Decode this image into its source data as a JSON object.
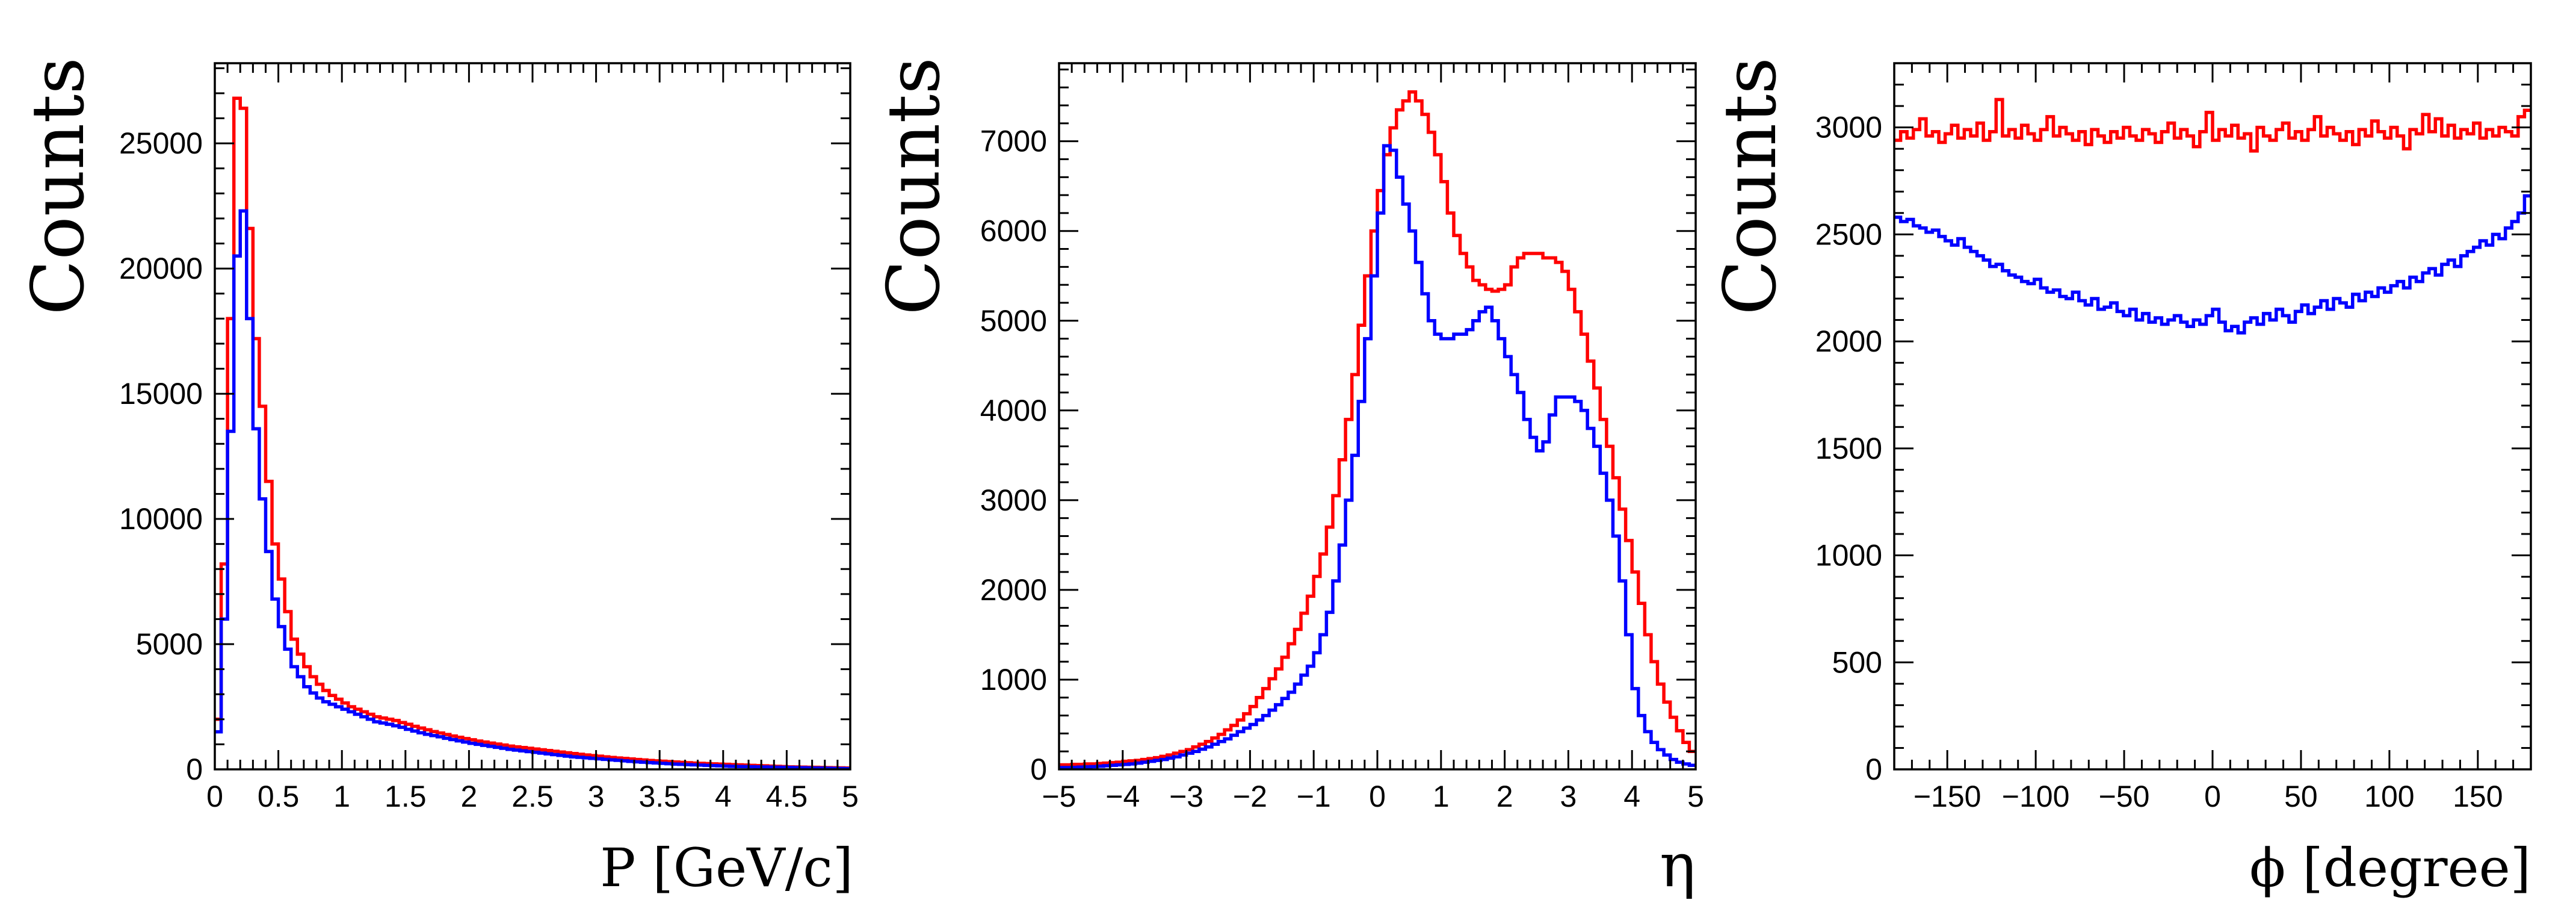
{
  "chart_data": [
    {
      "type": "step",
      "xlabel": "P [GeV/c]",
      "ylabel": "Counts",
      "xlim": [
        0,
        5
      ],
      "ylim": [
        0,
        28200
      ],
      "xticks": [
        0,
        0.5,
        1,
        1.5,
        2,
        2.5,
        3,
        3.5,
        4,
        4.5,
        5
      ],
      "xtick_labels": [
        "0",
        "0.5",
        "1",
        "1.5",
        "2",
        "2.5",
        "3",
        "3.5",
        "4",
        "4.5",
        "5"
      ],
      "xminor": 0.1,
      "yticks": [
        0,
        5000,
        10000,
        15000,
        20000,
        25000
      ],
      "ytick_labels": [
        "0",
        "5000",
        "10000",
        "15000",
        "20000",
        "25000"
      ],
      "yminor": 1000,
      "bin_edges_start": 0,
      "bin_width": 0.05,
      "series": [
        {
          "color": "#ff0000",
          "values": [
            2000,
            8200,
            18000,
            26800,
            26400,
            21600,
            17200,
            14500,
            11500,
            9000,
            7600,
            6300,
            5200,
            4600,
            4100,
            3700,
            3400,
            3150,
            2950,
            2800,
            2650,
            2500,
            2400,
            2300,
            2200,
            2100,
            2050,
            2000,
            1950,
            1870,
            1800,
            1720,
            1650,
            1580,
            1510,
            1450,
            1390,
            1330,
            1280,
            1230,
            1180,
            1130,
            1090,
            1050,
            1010,
            970,
            930,
            900,
            870,
            840,
            810,
            780,
            750,
            720,
            690,
            660,
            630,
            600,
            575,
            550,
            525,
            500,
            475,
            455,
            435,
            415,
            395,
            375,
            355,
            340,
            325,
            310,
            295,
            280,
            265,
            250,
            240,
            230,
            220,
            210,
            200,
            190,
            180,
            170,
            160,
            150,
            140,
            130,
            120,
            110,
            100,
            95,
            90,
            85,
            80,
            75,
            70,
            65,
            60,
            55
          ]
        },
        {
          "color": "#0000ff",
          "values": [
            1500,
            6000,
            13500,
            20500,
            22300,
            18000,
            13600,
            10800,
            8700,
            6800,
            5700,
            4800,
            4100,
            3700,
            3300,
            3050,
            2850,
            2700,
            2600,
            2500,
            2400,
            2300,
            2200,
            2100,
            2000,
            1900,
            1850,
            1800,
            1740,
            1680,
            1600,
            1530,
            1460,
            1400,
            1350,
            1300,
            1240,
            1190,
            1140,
            1090,
            1040,
            1000,
            960,
            920,
            880,
            840,
            800,
            770,
            740,
            710,
            680,
            650,
            620,
            590,
            560,
            530,
            500,
            480,
            460,
            440,
            420,
            400,
            380,
            360,
            340,
            320,
            300,
            285,
            270,
            255,
            240,
            225,
            210,
            200,
            190,
            180,
            170,
            160,
            150,
            140,
            130,
            120,
            115,
            110,
            105,
            100,
            95,
            90,
            85,
            80,
            75,
            70,
            65,
            60,
            55,
            50,
            45,
            40,
            35,
            30
          ]
        }
      ]
    },
    {
      "type": "step",
      "xlabel": "η",
      "ylabel": "Counts",
      "xlim": [
        -5,
        5
      ],
      "ylim": [
        0,
        7870
      ],
      "xticks": [
        -5,
        -4,
        -3,
        -2,
        -1,
        0,
        1,
        2,
        3,
        4,
        5
      ],
      "xtick_labels": [
        "−5",
        "−4",
        "−3",
        "−2",
        "−1",
        "0",
        "1",
        "2",
        "3",
        "4",
        "5"
      ],
      "xminor": 0.2,
      "yticks": [
        0,
        1000,
        2000,
        3000,
        4000,
        5000,
        6000,
        7000
      ],
      "ytick_labels": [
        "0",
        "1000",
        "2000",
        "3000",
        "4000",
        "5000",
        "6000",
        "7000"
      ],
      "yminor": 200,
      "bin_edges_start": -5,
      "bin_width": 0.1,
      "series": [
        {
          "color": "#ff0000",
          "values": [
            50,
            50,
            55,
            55,
            60,
            60,
            65,
            70,
            75,
            80,
            90,
            95,
            100,
            110,
            120,
            130,
            145,
            160,
            180,
            200,
            220,
            250,
            280,
            310,
            350,
            390,
            440,
            490,
            550,
            620,
            700,
            800,
            900,
            1010,
            1120,
            1250,
            1400,
            1560,
            1740,
            1930,
            2150,
            2400,
            2700,
            3050,
            3450,
            3900,
            4400,
            4950,
            5500,
            6000,
            6450,
            6850,
            7150,
            7350,
            7450,
            7550,
            7450,
            7300,
            7100,
            6850,
            6550,
            6200,
            5950,
            5750,
            5600,
            5450,
            5400,
            5350,
            5330,
            5350,
            5400,
            5600,
            5700,
            5750,
            5750,
            5750,
            5700,
            5700,
            5650,
            5550,
            5350,
            5100,
            4850,
            4550,
            4250,
            3900,
            3600,
            3250,
            2900,
            2550,
            2200,
            1850,
            1500,
            1200,
            950,
            750,
            580,
            430,
            300,
            200
          ]
        },
        {
          "color": "#0000ff",
          "values": [
            20,
            20,
            22,
            25,
            28,
            30,
            35,
            40,
            45,
            50,
            55,
            60,
            70,
            80,
            90,
            100,
            110,
            125,
            140,
            160,
            180,
            200,
            225,
            250,
            280,
            310,
            340,
            380,
            420,
            460,
            500,
            550,
            600,
            660,
            720,
            790,
            860,
            950,
            1050,
            1150,
            1300,
            1500,
            1750,
            2100,
            2500,
            3000,
            3500,
            4100,
            4800,
            5500,
            6200,
            6950,
            6900,
            6600,
            6300,
            6000,
            5650,
            5300,
            5000,
            4850,
            4800,
            4800,
            4850,
            4850,
            4900,
            5000,
            5100,
            5150,
            5000,
            4800,
            4600,
            4400,
            4200,
            3900,
            3700,
            3550,
            3650,
            3950,
            4150,
            4150,
            4150,
            4100,
            4000,
            3800,
            3600,
            3300,
            3000,
            2600,
            2100,
            1500,
            900,
            600,
            420,
            300,
            220,
            160,
            110,
            80,
            60,
            45
          ]
        }
      ]
    },
    {
      "type": "step",
      "xlabel": "ϕ [degree]",
      "ylabel": "Counts",
      "xlim": [
        -180,
        180
      ],
      "ylim": [
        0,
        3300
      ],
      "xticks": [
        -150,
        -100,
        -50,
        0,
        50,
        100,
        150
      ],
      "xtick_labels": [
        "−150",
        "−100",
        "−50",
        "0",
        "50",
        "100",
        "150"
      ],
      "xminor": 10,
      "yticks": [
        0,
        500,
        1000,
        1500,
        2000,
        2500,
        3000
      ],
      "ytick_labels": [
        "0",
        "500",
        "1000",
        "1500",
        "2000",
        "2500",
        "3000"
      ],
      "yminor": 100,
      "bin_edges_start": -180,
      "bin_width": 3.6,
      "series": [
        {
          "color": "#ff0000",
          "values": [
            2940,
            2980,
            2950,
            2990,
            3040,
            2960,
            2980,
            2930,
            2970,
            3010,
            2950,
            2990,
            2960,
            3020,
            2940,
            2980,
            3130,
            2960,
            2990,
            2950,
            3010,
            2970,
            2940,
            2990,
            3050,
            2960,
            3000,
            2970,
            2940,
            2980,
            2920,
            2990,
            2960,
            2930,
            2980,
            2950,
            3000,
            2960,
            2940,
            2990,
            2970,
            2930,
            2980,
            3020,
            2950,
            2990,
            2960,
            2910,
            2980,
            3070,
            2940,
            2990,
            2960,
            3010,
            2950,
            2970,
            2890,
            3000,
            2960,
            2940,
            2990,
            3020,
            2950,
            2980,
            2940,
            2990,
            3050,
            2960,
            3000,
            2970,
            2940,
            2980,
            2920,
            2990,
            2960,
            3030,
            2980,
            2950,
            3000,
            2960,
            2900,
            2990,
            2970,
            3060,
            2980,
            3040,
            2960,
            3010,
            2950,
            2990,
            2970,
            3020,
            2950,
            2990,
            2960,
            3000,
            2980,
            2960,
            3050,
            3080
          ]
        },
        {
          "color": "#0000ff",
          "values": [
            2580,
            2560,
            2570,
            2540,
            2530,
            2510,
            2520,
            2490,
            2470,
            2450,
            2480,
            2440,
            2420,
            2400,
            2380,
            2350,
            2360,
            2330,
            2310,
            2300,
            2280,
            2270,
            2290,
            2250,
            2230,
            2240,
            2210,
            2200,
            2230,
            2190,
            2170,
            2200,
            2150,
            2160,
            2180,
            2140,
            2120,
            2150,
            2100,
            2130,
            2090,
            2110,
            2080,
            2100,
            2120,
            2090,
            2070,
            2100,
            2080,
            2120,
            2150,
            2090,
            2050,
            2070,
            2040,
            2090,
            2110,
            2080,
            2130,
            2100,
            2150,
            2120,
            2090,
            2140,
            2170,
            2130,
            2160,
            2190,
            2150,
            2200,
            2180,
            2160,
            2220,
            2190,
            2230,
            2210,
            2250,
            2230,
            2260,
            2280,
            2250,
            2300,
            2280,
            2320,
            2340,
            2310,
            2360,
            2380,
            2350,
            2400,
            2420,
            2440,
            2470,
            2450,
            2500,
            2480,
            2530,
            2560,
            2600,
            2680
          ]
        }
      ]
    }
  ]
}
